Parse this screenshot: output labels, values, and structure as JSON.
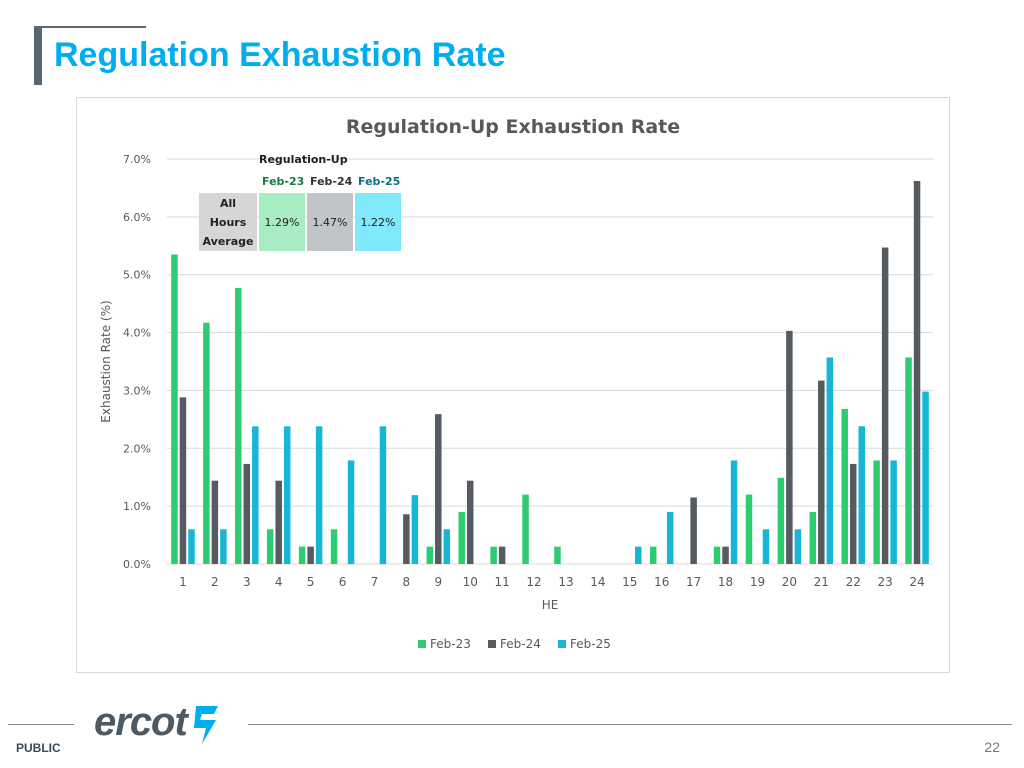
{
  "slide": {
    "title": "Regulation Exhaustion Rate",
    "footer_label": "PUBLIC",
    "page_number": "22",
    "logo_text": "ercot"
  },
  "colors": {
    "title": "#00aeef",
    "feb23": "#2ecc71",
    "feb24": "#555b60",
    "feb25": "#17b6d6"
  },
  "inset": {
    "heading": "Regulation-Up",
    "columns": [
      "Feb-23",
      "Feb-24",
      "Feb-25"
    ],
    "row_label_lines": [
      "All",
      "Hours",
      "Average"
    ],
    "values": [
      "1.29%",
      "1.47%",
      "1.22%"
    ]
  },
  "chart_data": {
    "type": "bar",
    "title": "Regulation-Up Exhaustion Rate",
    "xlabel": "HE",
    "ylabel": "Exhaustion Rate (%)",
    "ylim": [
      0,
      7
    ],
    "yticks": [
      "0.0%",
      "1.0%",
      "2.0%",
      "3.0%",
      "4.0%",
      "5.0%",
      "6.0%",
      "7.0%"
    ],
    "grid": true,
    "legend": "bottom",
    "categories": [
      "1",
      "2",
      "3",
      "4",
      "5",
      "6",
      "7",
      "8",
      "9",
      "10",
      "11",
      "12",
      "13",
      "14",
      "15",
      "16",
      "17",
      "18",
      "19",
      "20",
      "21",
      "22",
      "23",
      "24"
    ],
    "series": [
      {
        "name": "Feb-23",
        "color": "#2ecc71",
        "values": [
          5.35,
          4.17,
          4.77,
          0.6,
          0.3,
          0.6,
          0,
          0,
          0.3,
          0.9,
          0.3,
          1.2,
          0.3,
          0,
          0,
          0.3,
          0,
          0.3,
          1.2,
          1.49,
          0.9,
          2.68,
          1.79,
          3.57
        ]
      },
      {
        "name": "Feb-24",
        "color": "#555b60",
        "values": [
          2.88,
          1.44,
          1.73,
          1.44,
          0.3,
          0,
          0,
          0.86,
          2.59,
          1.44,
          0.3,
          0,
          0,
          0,
          0,
          0,
          1.15,
          0.3,
          0,
          4.03,
          3.17,
          1.73,
          5.47,
          6.62
        ]
      },
      {
        "name": "Feb-25",
        "color": "#17b6d6",
        "values": [
          0.6,
          0.6,
          2.38,
          2.38,
          2.38,
          1.79,
          2.38,
          1.19,
          0.6,
          0,
          0,
          0,
          0,
          0,
          0.3,
          0.9,
          0,
          1.79,
          0.6,
          0.6,
          3.57,
          2.38,
          1.79,
          2.98
        ]
      }
    ]
  }
}
